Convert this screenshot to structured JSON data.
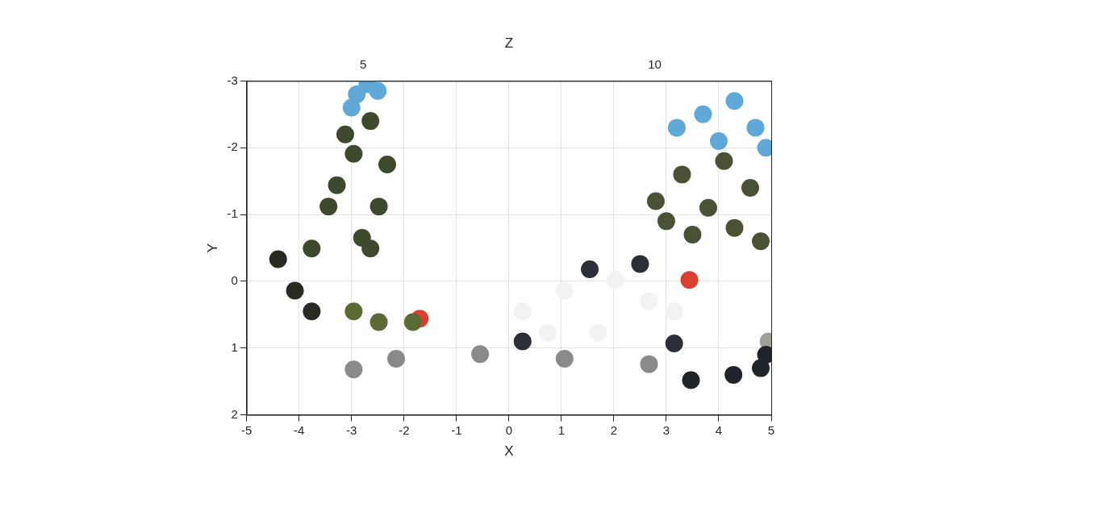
{
  "chart_data": {
    "type": "scatter",
    "x_label": "X",
    "y_label": "Y",
    "z_label": "Z",
    "xlim": [
      -5,
      5
    ],
    "xticks": [
      -5,
      -4,
      -3,
      -2,
      -1,
      0,
      1,
      2,
      3,
      4,
      5
    ],
    "ylim": [
      2,
      -3
    ],
    "yticks": [
      -3,
      -2,
      -1,
      0,
      1,
      2
    ],
    "zlim": [
      3,
      12
    ],
    "zticks": [
      5,
      10
    ],
    "grid": true,
    "series": [
      {
        "color": "#3d4a2e",
        "x": [
          -2.64,
          -2.96,
          -2.48,
          -2.64,
          -3.44,
          -3.12,
          -2.32,
          -3.76,
          -3.28,
          -2.8
        ],
        "y": [
          -2.4,
          -1.91,
          -1.12,
          -0.49,
          -1.12,
          -2.2,
          -1.75,
          -0.49,
          -1.44,
          -0.65
        ]
      },
      {
        "color": "#5fa8d8",
        "x": [
          -2.7,
          -2.9,
          -2.5,
          -3.0
        ],
        "y": [
          -2.95,
          -2.8,
          -2.85,
          -2.6
        ]
      },
      {
        "color": "#2b2a22",
        "x": [
          -4.08,
          -3.76,
          -4.4
        ],
        "y": [
          0.14,
          0.45,
          -0.33
        ]
      },
      {
        "color": "#5a6b35",
        "x": [
          -2.48,
          -2.96,
          -1.83
        ],
        "y": [
          0.61,
          0.45,
          0.61
        ]
      },
      {
        "color": "#8a8a88",
        "x": [
          -0.55,
          1.06,
          -2.15,
          2.67,
          -2.96
        ],
        "y": [
          1.09,
          1.16,
          1.16,
          1.24,
          1.32
        ]
      },
      {
        "color": "#1f2428",
        "x": [
          4.28,
          4.8,
          3.47,
          4.9
        ],
        "y": [
          1.4,
          1.3,
          1.48,
          1.1
        ]
      },
      {
        "color": "#f2f2f2",
        "x": [
          0.26,
          1.06,
          2.03,
          2.67,
          0.74,
          1.7,
          3.15
        ],
        "y": [
          0.45,
          0.14,
          -0.02,
          0.3,
          0.77,
          0.77,
          0.45
        ]
      },
      {
        "color": "#2a2f38",
        "x": [
          0.26,
          3.15,
          2.5,
          1.54
        ],
        "y": [
          0.9,
          0.93,
          -0.26,
          -0.18
        ]
      },
      {
        "color": "#d9402f",
        "x": [
          -1.7,
          3.44
        ],
        "y": [
          0.56,
          -0.02
        ]
      },
      {
        "color": "#4a5236",
        "x": [
          2.8,
          3.3,
          3.8,
          4.3,
          3.5,
          4.6,
          3.0,
          4.1,
          4.8
        ],
        "y": [
          -1.2,
          -1.6,
          -1.1,
          -0.8,
          -0.7,
          -1.4,
          -0.9,
          -1.8,
          -0.6
        ]
      },
      {
        "color": "#5fa8d8",
        "x": [
          3.2,
          3.7,
          4.3,
          4.7,
          4.0,
          4.9
        ],
        "y": [
          -2.3,
          -2.5,
          -2.7,
          -2.3,
          -2.1,
          -2.0
        ]
      },
      {
        "color": "#a09f96",
        "x": [
          4.95
        ],
        "y": [
          0.9
        ]
      }
    ]
  }
}
